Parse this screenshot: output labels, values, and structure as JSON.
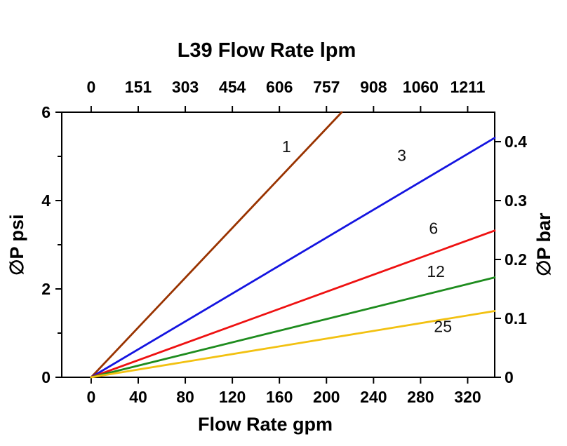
{
  "chart_data": {
    "type": "line",
    "title": "L39 Flow Rate lpm",
    "xlabel": "Flow Rate gpm",
    "ylabel_left": "∅P psi",
    "ylabel_right": "∅P bar",
    "xlim": [
      -25,
      343
    ],
    "ylim_left": [
      0,
      6
    ],
    "ylim_right": [
      0,
      0.45
    ],
    "grid": false,
    "legend": "inline-labels",
    "x_ticks_gpm": [
      0,
      40,
      80,
      120,
      160,
      200,
      240,
      280,
      320
    ],
    "x_ticks_top_lpm_labels": [
      "0",
      "151",
      "303",
      "454",
      "606",
      "757",
      "908",
      "1060",
      "1211"
    ],
    "y_ticks_left": [
      0,
      2,
      4,
      6
    ],
    "y_minor_ticks_left": [
      1,
      3,
      5
    ],
    "y_ticks_right": [
      0,
      0.1,
      0.2,
      0.3,
      0.4
    ],
    "axis_color": "#000000",
    "series": [
      {
        "name": "1",
        "color": "#993300",
        "points": [
          [
            0,
            0
          ],
          [
            213,
            6.0
          ]
        ],
        "label": {
          "x": 166,
          "y": 5.22
        }
      },
      {
        "name": "3",
        "color": "#1414E0",
        "points": [
          [
            0,
            0
          ],
          [
            343,
            5.42
          ]
        ],
        "label": {
          "x": 264,
          "y": 5.02
        }
      },
      {
        "name": "6",
        "color": "#EE1111",
        "points": [
          [
            0,
            0
          ],
          [
            343,
            3.32
          ]
        ],
        "label": {
          "x": 291,
          "y": 3.37
        }
      },
      {
        "name": "12",
        "color": "#1E8C1E",
        "points": [
          [
            0,
            0
          ],
          [
            343,
            2.26
          ]
        ],
        "label": {
          "x": 293,
          "y": 2.4
        }
      },
      {
        "name": "25",
        "color": "#F2C111",
        "points": [
          [
            0,
            0
          ],
          [
            343,
            1.5
          ]
        ],
        "label": {
          "x": 299,
          "y": 1.15
        }
      }
    ]
  }
}
